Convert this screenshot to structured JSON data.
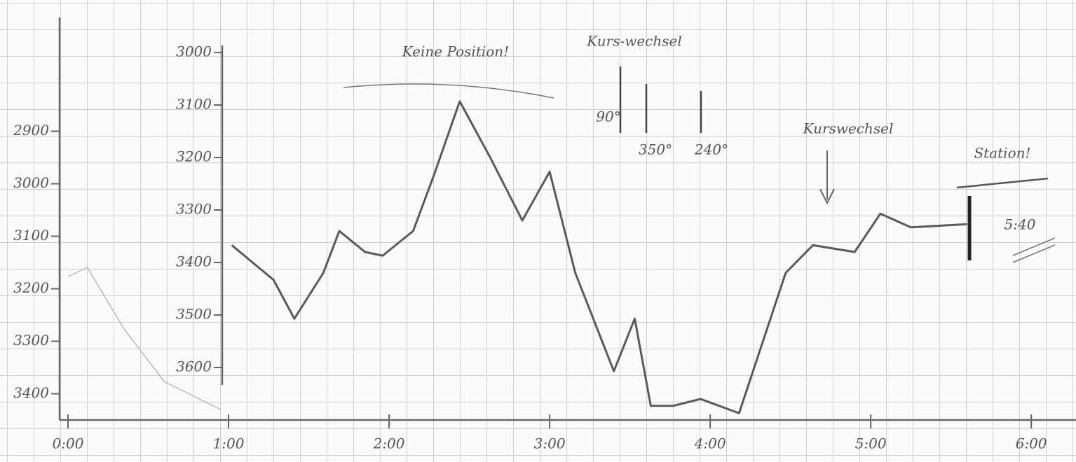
{
  "chart_data": {
    "type": "line",
    "annotations": [
      "Keine Position!",
      "Kurs-wechsel",
      "90°",
      "350°",
      "240°",
      "Kurswechsel",
      "Station!",
      "5:40"
    ],
    "xlim": [
      0,
      6.2
    ],
    "xticks": [
      {
        "value": 0,
        "label": "0:00"
      },
      {
        "value": 1,
        "label": "1:00"
      },
      {
        "value": 2,
        "label": "2:00"
      },
      {
        "value": 3,
        "label": "3:00"
      },
      {
        "value": 4,
        "label": "4:00"
      },
      {
        "value": 5,
        "label": "5:00"
      },
      {
        "value": 6,
        "label": "6:00"
      }
    ],
    "ylim": [
      3700,
      3000
    ],
    "yticks": [
      3000,
      3100,
      3200,
      3300,
      3400,
      3500,
      3600
    ],
    "y2lim": [
      3450,
      2750
    ],
    "y2ticks": [
      2900,
      3000,
      3100,
      3200,
      3300,
      3400
    ],
    "series": [
      {
        "color": "#5a5a5a",
        "x": [
          1.02,
          1.28,
          1.41,
          1.59,
          1.69,
          1.85,
          1.96,
          2.15,
          2.28,
          2.44,
          2.63,
          2.83,
          3.0,
          3.16,
          3.4,
          3.53,
          3.63,
          3.77,
          3.94,
          4.18,
          4.47,
          4.64,
          4.9,
          5.06,
          5.25,
          5.6
        ],
        "values": [
          3367,
          3433,
          3507,
          3420,
          3340,
          3380,
          3387,
          3340,
          3233,
          3093,
          3200,
          3320,
          3227,
          3420,
          3607,
          3507,
          3673,
          3673,
          3660,
          3687,
          3420,
          3367,
          3380,
          3307,
          3333,
          3327
        ]
      },
      {
        "color": "#b8b8b8",
        "axis": "y2",
        "x": [
          0,
          0.12,
          0.35,
          0.6,
          0.95
        ],
        "values": [
          3177,
          3159,
          3277,
          3377,
          3430
        ]
      }
    ]
  }
}
